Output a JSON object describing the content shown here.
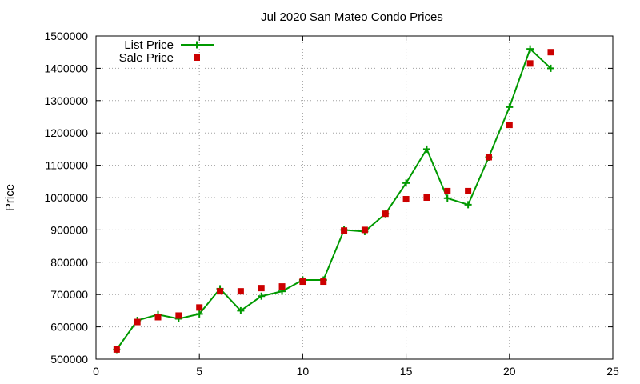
{
  "chart_data": {
    "type": "line",
    "title": "Jul 2020 San Mateo Condo Prices",
    "xlabel": "",
    "ylabel": "Price",
    "xlim": [
      0,
      25
    ],
    "ylim": [
      500000,
      1500000
    ],
    "x_ticks": [
      0,
      5,
      10,
      15,
      20,
      25
    ],
    "y_ticks": [
      500000,
      600000,
      700000,
      800000,
      900000,
      1000000,
      1100000,
      1200000,
      1300000,
      1400000,
      1500000
    ],
    "grid": true,
    "legend_position": "top-left",
    "series": [
      {
        "name": "List Price",
        "style": "line-with-plus-markers",
        "color": "#009900",
        "x": [
          1,
          2,
          3,
          4,
          5,
          6,
          7,
          8,
          9,
          10,
          11,
          12,
          13,
          14,
          15,
          16,
          17,
          18,
          19,
          20,
          21,
          22
        ],
        "values": [
          530000,
          620000,
          638000,
          625000,
          640000,
          718000,
          650000,
          695000,
          710000,
          745000,
          745000,
          900000,
          895000,
          950000,
          1045000,
          1150000,
          998000,
          978000,
          1125000,
          1280000,
          1460000,
          1400000
        ]
      },
      {
        "name": "Sale Price",
        "style": "square-markers",
        "color": "#cc0000",
        "x": [
          1,
          2,
          3,
          4,
          5,
          6,
          7,
          8,
          9,
          10,
          11,
          12,
          13,
          14,
          15,
          16,
          17,
          18,
          19,
          20,
          21,
          22
        ],
        "values": [
          530000,
          615000,
          630000,
          635000,
          660000,
          710000,
          710000,
          720000,
          725000,
          740000,
          740000,
          898000,
          900000,
          950000,
          995000,
          1000000,
          1020000,
          1020000,
          1125000,
          1225000,
          1415000,
          1450000
        ]
      }
    ]
  }
}
